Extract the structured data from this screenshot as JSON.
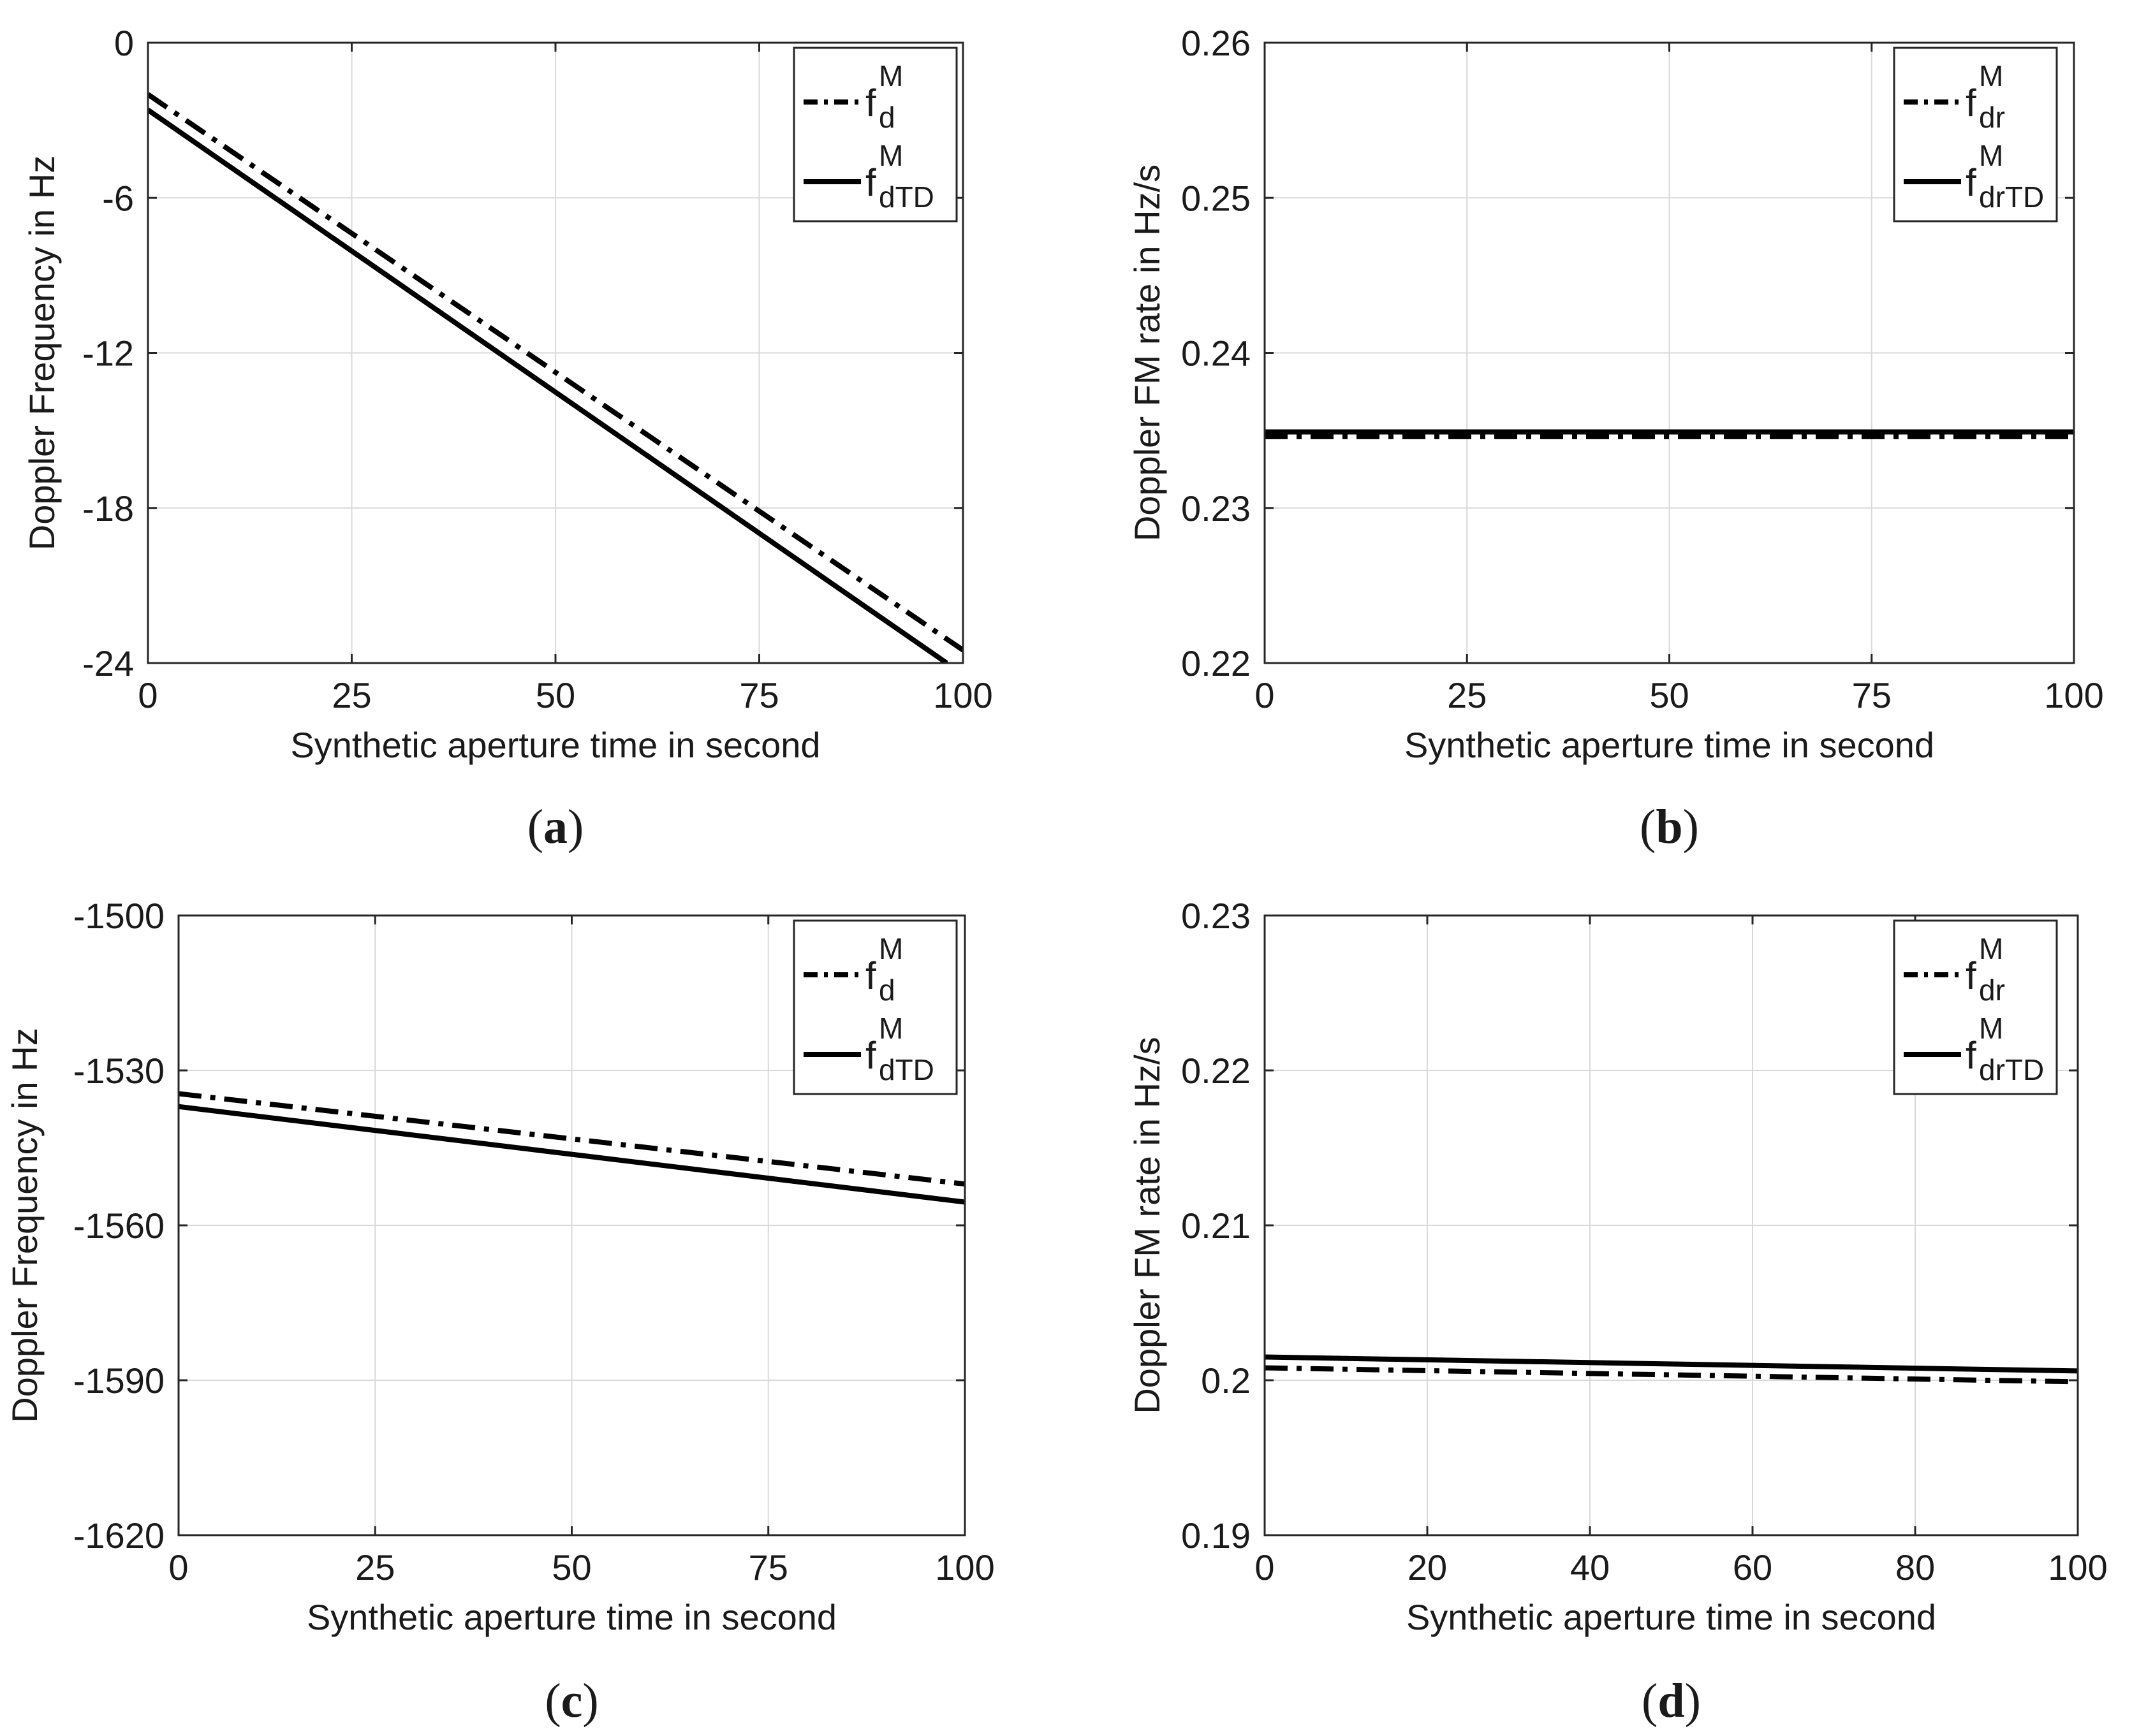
{
  "chart_data": [
    {
      "id": "a",
      "type": "line",
      "caption": "a",
      "xlabel": "Synthetic aperture time in second",
      "ylabel": "Doppler Frequency  in Hz",
      "xlim": [
        0,
        100
      ],
      "ylim": [
        -24,
        0
      ],
      "xticks": [
        "0",
        "25",
        "50",
        "75",
        "100"
      ],
      "yticks": [
        "0",
        "-6",
        "-12",
        "-18",
        "-24"
      ],
      "xtick_values": [
        0,
        25,
        50,
        75,
        100
      ],
      "ytick_values": [
        0,
        -6,
        -12,
        -18,
        -24
      ],
      "grid": true,
      "legend_position": "top-right",
      "series": [
        {
          "name": "f_d^M",
          "legend_base": "f",
          "legend_sub": "d",
          "legend_sup": "M",
          "style": "dashdot",
          "x": [
            0,
            100
          ],
          "y": [
            -2.0,
            -23.5
          ]
        },
        {
          "name": "f_dTD^M",
          "legend_base": "f",
          "legend_sub": "dTD",
          "legend_sup": "M",
          "style": "solid",
          "x": [
            0,
            98
          ],
          "y": [
            -2.6,
            -24.0
          ]
        }
      ]
    },
    {
      "id": "b",
      "type": "line",
      "caption": "b",
      "xlabel": "Synthetic aperture time in second",
      "ylabel": "Doppler FM rate in Hz/s",
      "xlim": [
        0,
        100
      ],
      "ylim": [
        0.22,
        0.26
      ],
      "xticks": [
        "0",
        "25",
        "50",
        "75",
        "100"
      ],
      "yticks": [
        "0.26",
        "0.25",
        "0.24",
        "0.23",
        "0.22"
      ],
      "xtick_values": [
        0,
        25,
        50,
        75,
        100
      ],
      "ytick_values": [
        0.26,
        0.25,
        0.24,
        0.23,
        0.22
      ],
      "grid": true,
      "legend_position": "top-right",
      "series": [
        {
          "name": "f_dr^M",
          "legend_base": "f",
          "legend_sub": "dr",
          "legend_sup": "M",
          "style": "dashdot",
          "x": [
            0,
            100
          ],
          "y": [
            0.2346,
            0.2346
          ]
        },
        {
          "name": "f_drTD^M",
          "legend_base": "f",
          "legend_sub": "drTD",
          "legend_sup": "M",
          "style": "solid",
          "x": [
            0,
            100
          ],
          "y": [
            0.2349,
            0.2349
          ]
        }
      ]
    },
    {
      "id": "c",
      "type": "line",
      "caption": "c",
      "xlabel": "Synthetic aperture time in second",
      "ylabel": "Doppler Frequency  in Hz",
      "xlim": [
        0,
        100
      ],
      "ylim": [
        -1620,
        -1500
      ],
      "xticks": [
        "0",
        "25",
        "50",
        "75",
        "100"
      ],
      "yticks": [
        "-1500",
        "-1530",
        "-1560",
        "-1590",
        "-1620"
      ],
      "xtick_values": [
        0,
        25,
        50,
        75,
        100
      ],
      "ytick_values": [
        -1500,
        -1530,
        -1560,
        -1590,
        -1620
      ],
      "grid": true,
      "legend_position": "top-right",
      "series": [
        {
          "name": "f_d^M",
          "legend_base": "f",
          "legend_sub": "d",
          "legend_sup": "M",
          "style": "dashdot",
          "x": [
            0,
            100
          ],
          "y": [
            -1534.5,
            -1552.0
          ]
        },
        {
          "name": "f_dTD^M",
          "legend_base": "f",
          "legend_sub": "dTD",
          "legend_sup": "M",
          "style": "solid",
          "x": [
            0,
            100
          ],
          "y": [
            -1537.0,
            -1555.5
          ]
        }
      ]
    },
    {
      "id": "d",
      "type": "line",
      "caption": "d",
      "xlabel": "Synthetic aperture time in second",
      "ylabel": "Doppler FM rate in Hz/s",
      "xlim": [
        0,
        100
      ],
      "ylim": [
        0.19,
        0.23
      ],
      "xticks": [
        "0",
        "20",
        "40",
        "60",
        "80",
        "100"
      ],
      "yticks": [
        "0.23",
        "0.22",
        "0.21",
        "0.2",
        "0.19"
      ],
      "xtick_values": [
        0,
        20,
        40,
        60,
        80,
        100
      ],
      "ytick_values": [
        0.23,
        0.22,
        0.21,
        0.2,
        0.19
      ],
      "grid": true,
      "legend_position": "top-right",
      "series": [
        {
          "name": "f_dr^M",
          "legend_base": "f",
          "legend_sub": "dr",
          "legend_sup": "M",
          "style": "dashdot",
          "x": [
            0,
            100
          ],
          "y": [
            0.2008,
            0.1999
          ]
        },
        {
          "name": "f_drTD^M",
          "legend_base": "f",
          "legend_sub": "drTD",
          "legend_sup": "M",
          "style": "solid",
          "x": [
            0,
            100
          ],
          "y": [
            0.2015,
            0.2006
          ]
        }
      ]
    }
  ],
  "colors": {
    "line": "#000000",
    "grid": "#d9d9d9",
    "axis": "#262626",
    "text": "#1a1a1a"
  }
}
